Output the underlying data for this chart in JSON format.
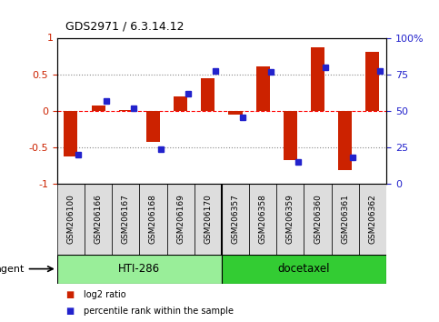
{
  "title": "GDS2971 / 6.3.14.12",
  "samples": [
    "GSM206100",
    "GSM206166",
    "GSM206167",
    "GSM206168",
    "GSM206169",
    "GSM206170",
    "GSM206357",
    "GSM206358",
    "GSM206359",
    "GSM206360",
    "GSM206361",
    "GSM206362"
  ],
  "log2_ratio": [
    -0.62,
    0.08,
    0.02,
    -0.42,
    0.2,
    0.45,
    -0.05,
    0.62,
    -0.68,
    0.88,
    -0.82,
    0.82
  ],
  "percentile": [
    20,
    57,
    52,
    24,
    62,
    78,
    46,
    77,
    15,
    80,
    18,
    78
  ],
  "groups": [
    {
      "label": "HTI-286",
      "start": 0,
      "end": 5,
      "color": "#99ee99"
    },
    {
      "label": "docetaxel",
      "start": 6,
      "end": 11,
      "color": "#33cc33"
    }
  ],
  "bar_color": "#cc2200",
  "dot_color": "#2222cc",
  "ylim": [
    -1,
    1
  ],
  "yticks_left": [
    -1,
    -0.5,
    0,
    0.5
  ],
  "yticks_right": [
    0,
    25,
    50,
    75,
    100
  ],
  "background_color": "#ffffff",
  "agent_label": "agent",
  "legend_log2": "log2 ratio",
  "legend_pct": "percentile rank within the sample"
}
